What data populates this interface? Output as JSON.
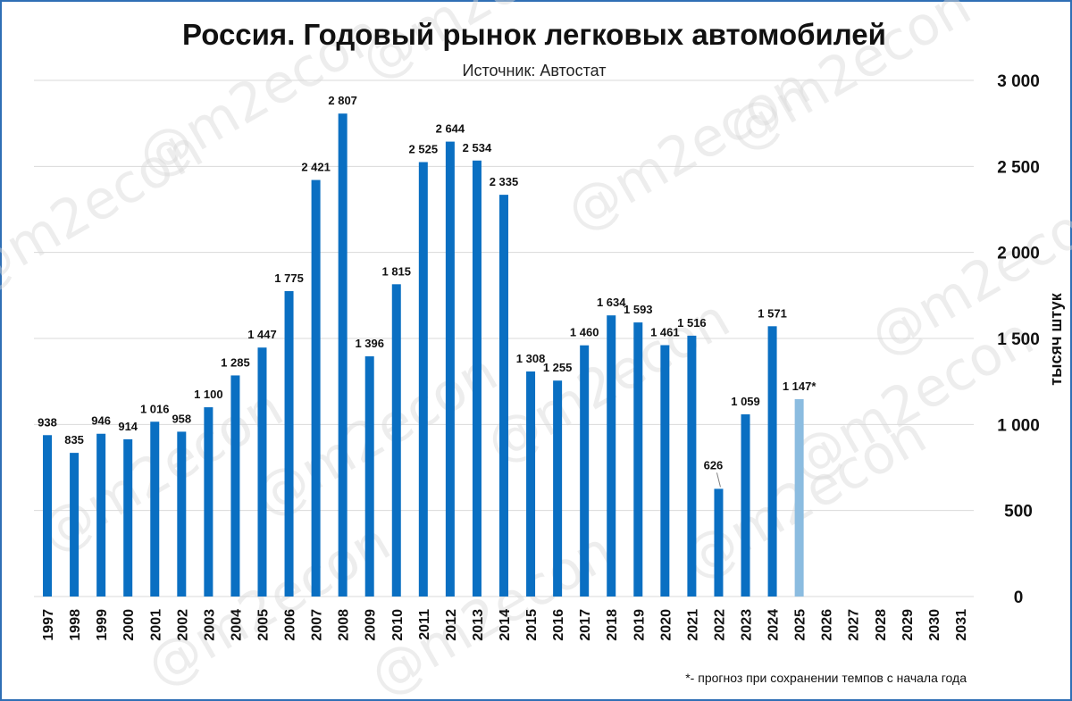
{
  "chart_data": {
    "type": "bar",
    "title": "Россия. Годовый рынок легковых автомобилей",
    "subtitle": "Источник: Автостат",
    "ylabel": "тысяч штук",
    "ylim": [
      0,
      3000
    ],
    "yticks": [
      0,
      500,
      1000,
      1500,
      2000,
      2500,
      3000
    ],
    "ytick_labels": [
      "0",
      "500",
      "1 000",
      "1 500",
      "2 000",
      "2 500",
      "3 000"
    ],
    "categories": [
      "1997",
      "1998",
      "1999",
      "2000",
      "2001",
      "2002",
      "2003",
      "2004",
      "2005",
      "2006",
      "2007",
      "2008",
      "2009",
      "2010",
      "2011",
      "2012",
      "2013",
      "2014",
      "2015",
      "2016",
      "2017",
      "2018",
      "2019",
      "2020",
      "2021",
      "2022",
      "2023",
      "2024",
      "2025",
      "2026",
      "2027",
      "2028",
      "2029",
      "2030",
      "2031"
    ],
    "values": [
      938,
      835,
      946,
      914,
      1016,
      958,
      1100,
      1285,
      1447,
      1775,
      2421,
      2807,
      1396,
      1815,
      2525,
      2644,
      2534,
      2335,
      1308,
      1255,
      1460,
      1634,
      1593,
      1461,
      1516,
      626,
      1059,
      1571,
      1147,
      null,
      null,
      null,
      null,
      null,
      null
    ],
    "data_labels": [
      "938",
      "835",
      "946",
      "914",
      "1 016",
      "958",
      "1 100",
      "1 285",
      "1 447",
      "1 775",
      "2 421",
      "2 807",
      "1 396",
      "1 815",
      "2 525",
      "2 644",
      "2 534",
      "2 335",
      "1 308",
      "1 255",
      "1 460",
      "1 634",
      "1 593",
      "1 461",
      "1 516",
      "626",
      "1 059",
      "1 571",
      "1 147*",
      "",
      "",
      "",
      "",
      "",
      ""
    ],
    "forecast_index": 28,
    "colors": {
      "bar": "#0a6fc2",
      "forecast": "#8bbce0",
      "grid": "#d9d9d9",
      "border": "#2f6fb5"
    },
    "grid": true,
    "footnote": "*- прогноз при сохранении темпов с начала года",
    "watermark": "@m2econ"
  }
}
